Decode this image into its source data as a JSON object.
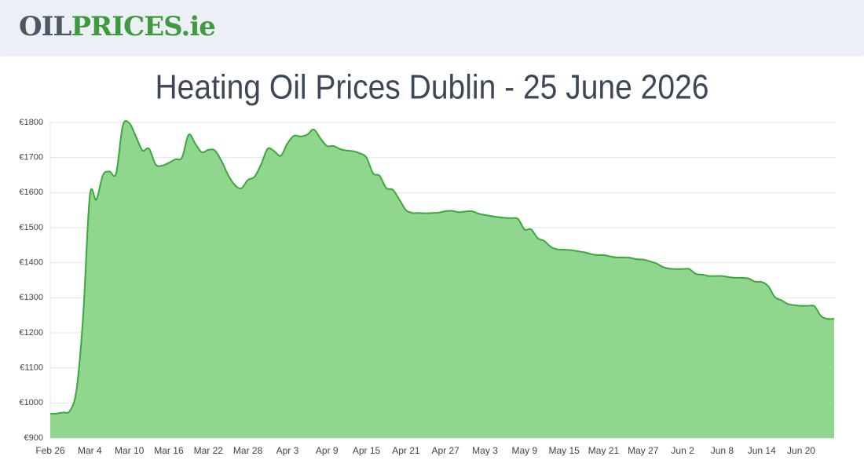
{
  "header": {
    "logo": [
      "OIL",
      "PRICES",
      ".ie"
    ]
  },
  "chart_data": {
    "type": "area",
    "title": "Heating Oil Prices Dublin - 25 June 2026",
    "color": "#3aa83a",
    "fill": "#90d68f",
    "grid": true,
    "categories": [
      "Feb 26",
      null,
      null,
      null,
      null,
      null,
      "Mar 4",
      null,
      null,
      null,
      null,
      null,
      "Mar 10",
      null,
      null,
      null,
      null,
      null,
      "Mar 16",
      null,
      null,
      null,
      null,
      null,
      "Mar 22",
      null,
      null,
      null,
      null,
      null,
      "Mar 28",
      null,
      null,
      null,
      null,
      null,
      "Apr 3",
      null,
      null,
      null,
      null,
      null,
      "Apr 9",
      null,
      null,
      null,
      null,
      null,
      "Apr 15",
      null,
      null,
      null,
      null,
      null,
      "Apr 21",
      null,
      null,
      null,
      null,
      null,
      "Apr 27",
      null,
      null,
      null,
      null,
      null,
      "May 3",
      null,
      null,
      null,
      null,
      null,
      "May 9",
      null,
      null,
      null,
      null,
      null,
      "May 15",
      null,
      null,
      null,
      null,
      null,
      "May 21",
      null,
      null,
      null,
      null,
      null,
      "May 27",
      null,
      null,
      null,
      null,
      null,
      "Jun 2",
      null,
      null,
      null,
      null,
      null,
      "Jun 8",
      null,
      null,
      null,
      null,
      null,
      "Jun 14",
      null,
      null,
      null,
      null,
      null,
      "Jun 20",
      null,
      null,
      null,
      null,
      null
    ],
    "values": [
      969,
      970,
      973,
      978,
      1040,
      1250,
      1590,
      1580,
      1650,
      1660,
      1655,
      1790,
      1798,
      1760,
      1720,
      1725,
      1680,
      1677,
      1685,
      1695,
      1700,
      1765,
      1740,
      1715,
      1722,
      1720,
      1690,
      1650,
      1622,
      1612,
      1636,
      1645,
      1680,
      1725,
      1718,
      1705,
      1740,
      1762,
      1760,
      1765,
      1780,
      1755,
      1733,
      1733,
      1724,
      1720,
      1718,
      1712,
      1700,
      1655,
      1648,
      1613,
      1608,
      1580,
      1550,
      1542,
      1542,
      1541,
      1542,
      1543,
      1547,
      1548,
      1544,
      1546,
      1547,
      1540,
      1536,
      1533,
      1530,
      1528,
      1527,
      1525,
      1495,
      1495,
      1470,
      1462,
      1445,
      1438,
      1437,
      1436,
      1433,
      1430,
      1425,
      1422,
      1422,
      1418,
      1415,
      1415,
      1414,
      1410,
      1409,
      1404,
      1398,
      1388,
      1383,
      1382,
      1382,
      1382,
      1368,
      1366,
      1362,
      1362,
      1362,
      1359,
      1357,
      1357,
      1355,
      1346,
      1345,
      1333,
      1302,
      1293,
      1282,
      1279,
      1277,
      1277,
      1276,
      1248,
      1240,
      1240
    ],
    "ylim": [
      900,
      1800
    ],
    "yticks": [
      {
        "value": 900,
        "label": "€900"
      },
      {
        "value": 1000,
        "label": "€1000"
      },
      {
        "value": 1100,
        "label": "€1100"
      },
      {
        "value": 1200,
        "label": "€1200"
      },
      {
        "value": 1300,
        "label": "€1300"
      },
      {
        "value": 1400,
        "label": "€1400"
      },
      {
        "value": 1500,
        "label": "€1500"
      },
      {
        "value": 1600,
        "label": "€1600"
      },
      {
        "value": 1700,
        "label": "€1700"
      },
      {
        "value": 1800,
        "label": "€1800"
      }
    ]
  }
}
